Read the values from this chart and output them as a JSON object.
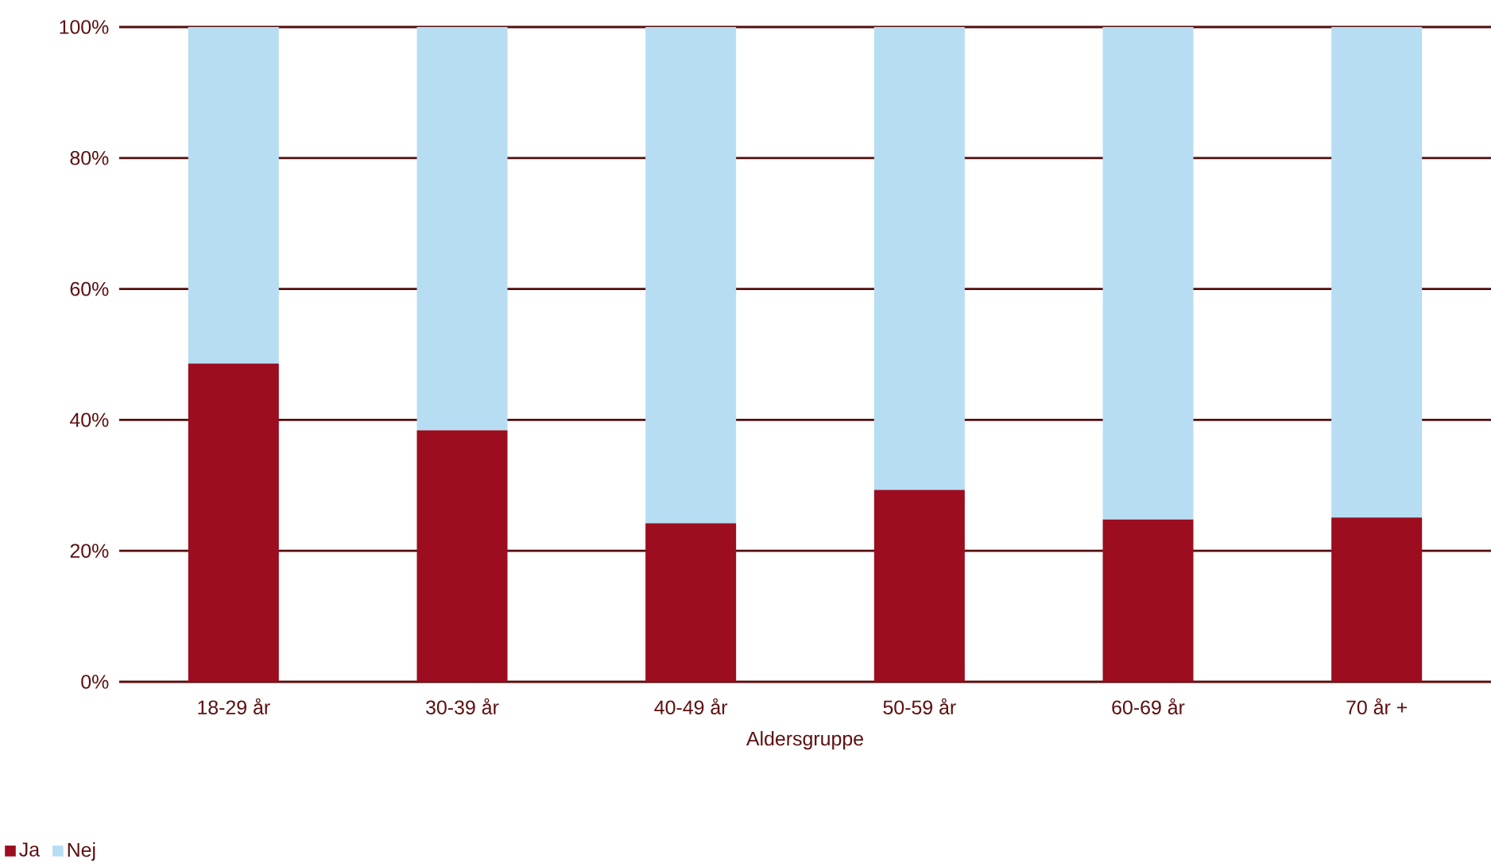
{
  "chart_data": {
    "type": "bar",
    "stacked": true,
    "xlabel": "Aldersgruppe",
    "categories": [
      "18-29 år",
      "30-39 år",
      "40-49 år",
      "50-59 år",
      "60-69 år",
      "70 år +"
    ],
    "series": [
      {
        "name": "Ja",
        "color": "#9b0d1f",
        "values": [
          48.6,
          38.4,
          24.2,
          29.3,
          24.8,
          25.1
        ]
      },
      {
        "name": "Nej",
        "color": "#b7ddf3",
        "values": [
          51.4,
          61.6,
          75.8,
          70.7,
          75.2,
          74.9
        ]
      }
    ],
    "ylim": [
      0,
      100
    ],
    "yticks": [
      {
        "value": 0,
        "label": "0%"
      },
      {
        "value": 20,
        "label": "20%"
      },
      {
        "value": 40,
        "label": "40%"
      },
      {
        "value": 60,
        "label": "60%"
      },
      {
        "value": 80,
        "label": "80%"
      },
      {
        "value": 100,
        "label": "100%"
      }
    ],
    "grid": "y",
    "legend": "bottom left"
  }
}
